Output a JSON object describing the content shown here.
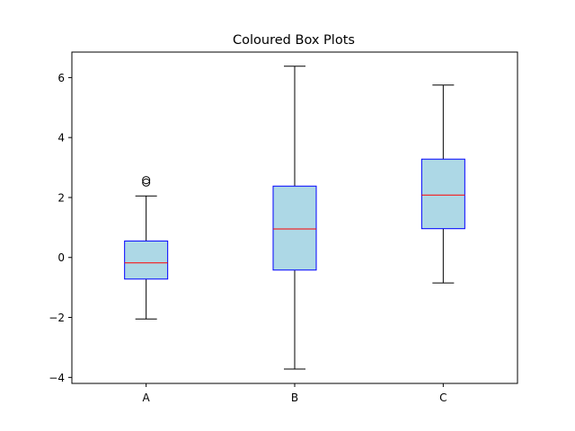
{
  "chart_data": {
    "type": "box",
    "title": "Coloured Box Plots",
    "xlabel": "",
    "ylabel": "",
    "categories": [
      "A",
      "B",
      "C"
    ],
    "ylim": [
      -4.2,
      6.85
    ],
    "yticks": [
      -4,
      -2,
      0,
      2,
      4,
      6
    ],
    "ytick_labels": [
      "−4",
      "−2",
      "0",
      "2",
      "4",
      "6"
    ],
    "boxes": [
      {
        "category": "A",
        "whisker_low": -2.05,
        "q1": -0.72,
        "median": -0.18,
        "q3": 0.55,
        "whisker_high": 2.05,
        "outliers": [
          2.5,
          2.58
        ]
      },
      {
        "category": "B",
        "whisker_low": -3.72,
        "q1": -0.42,
        "median": 0.95,
        "q3": 2.38,
        "whisker_high": 6.38,
        "outliers": []
      },
      {
        "category": "C",
        "whisker_low": -0.85,
        "q1": 0.96,
        "median": 2.08,
        "q3": 3.28,
        "whisker_high": 5.75,
        "outliers": []
      }
    ],
    "colors": {
      "box_fill": "#add8e6",
      "box_edge": "#0000ff",
      "median": "#ff0000",
      "whisker": "#000000"
    },
    "grid": false,
    "legend": "none"
  }
}
